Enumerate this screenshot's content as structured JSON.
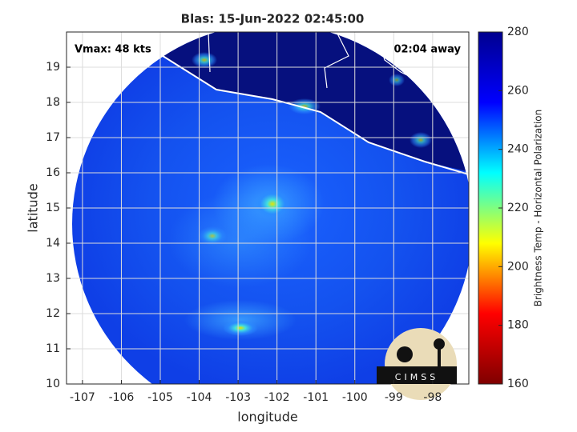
{
  "chart_data": {
    "type": "map",
    "title": "Blas: 15-Jun-2022 02:45:00",
    "annotations": [
      "Vmax: 48 kts",
      "02:04 away"
    ],
    "xlabel": "longitude",
    "ylabel": "latitude",
    "xlim": [
      -107.41,
      -97.07
    ],
    "xticks": [
      -107,
      -106,
      -105,
      -104,
      -103,
      -102,
      -101,
      -100,
      -99,
      -98
    ],
    "ylim": [
      10,
      20
    ],
    "yticks": [
      10,
      11,
      12,
      13,
      14,
      15,
      16,
      17,
      18,
      19
    ],
    "grid": true,
    "colorbar": {
      "label": "Brightness Temp - Horizontal Polarization",
      "lim": [
        160,
        280
      ],
      "ticks": [
        160,
        180,
        200,
        220,
        240,
        260,
        280
      ],
      "colormap": [
        "#7f0000",
        "#ff0000",
        "#ffff00",
        "#00ffff",
        "#0000ff",
        "#00008f"
      ]
    },
    "logo": "CIMSS"
  }
}
